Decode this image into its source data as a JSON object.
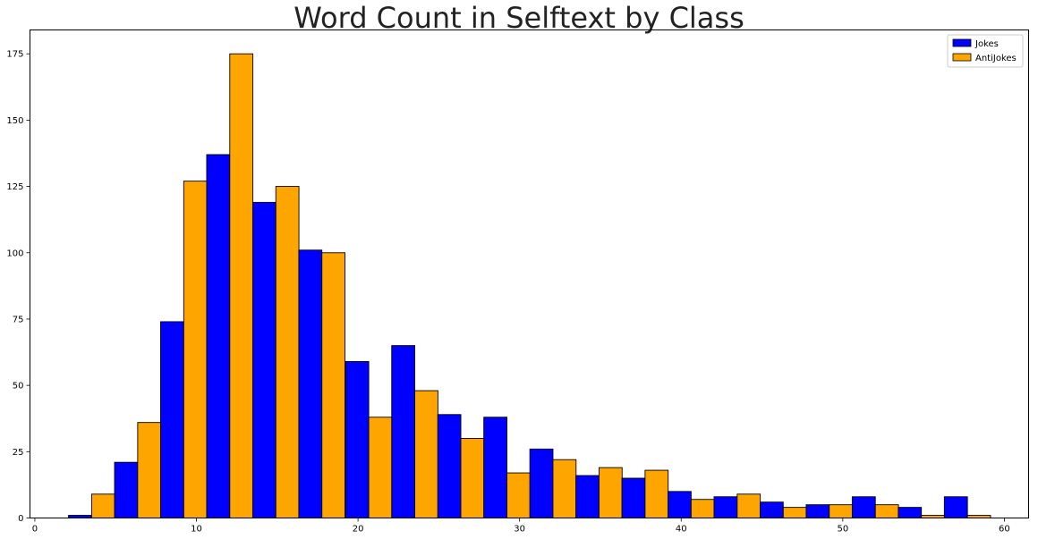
{
  "chart_data": {
    "type": "bar",
    "title": "Word Count in Selftext by Class",
    "xlabel": "",
    "ylabel": "",
    "xlim": [
      -0.3,
      61.5
    ],
    "ylim": [
      0,
      184
    ],
    "x_ticks": [
      0,
      10,
      20,
      30,
      40,
      50,
      60
    ],
    "y_ticks": [
      0,
      25,
      50,
      75,
      100,
      125,
      150,
      175
    ],
    "grid": false,
    "legend_position": "top-right",
    "bin_width": 1.43,
    "x": [
      2.8,
      5.65,
      8.5,
      11.35,
      14.2,
      17.05,
      19.95,
      22.8,
      25.65,
      28.5,
      31.35,
      34.2,
      37.05,
      39.9,
      42.75,
      45.6,
      48.45,
      51.3,
      54.15,
      57.0
    ],
    "series": [
      {
        "name": "Jokes",
        "color": "#0000ff",
        "values": [
          1,
          21,
          74,
          137,
          119,
          101,
          59,
          65,
          39,
          38,
          26,
          16,
          15,
          10,
          8,
          6,
          5,
          8,
          4,
          8
        ]
      },
      {
        "name": "AntiJokes",
        "color": "#ffa500",
        "values": [
          9,
          36,
          127,
          175,
          125,
          100,
          38,
          48,
          30,
          17,
          22,
          19,
          18,
          7,
          9,
          4,
          5,
          5,
          1,
          1
        ]
      }
    ]
  }
}
